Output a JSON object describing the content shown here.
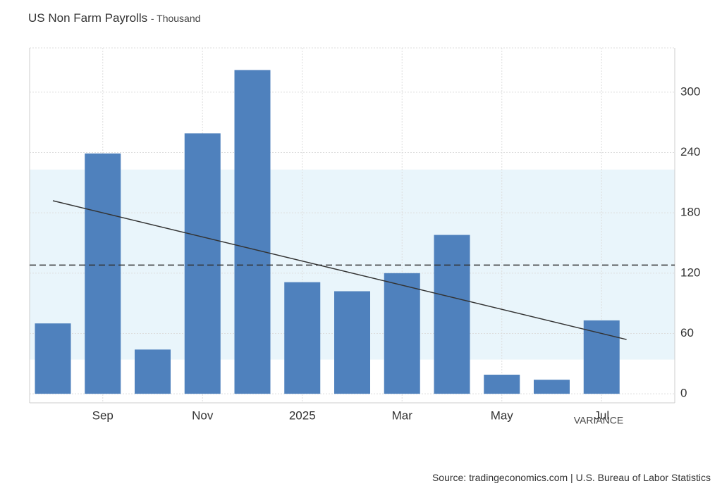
{
  "chart_data": {
    "type": "bar",
    "title": "US Non Farm Payrolls",
    "subtitle": "- Thousand",
    "categories": [
      null,
      "Sep",
      null,
      "Nov",
      null,
      "2025",
      null,
      "Mar",
      null,
      "May",
      null,
      "Jul"
    ],
    "values": [
      70,
      239,
      44,
      259,
      322,
      111,
      102,
      120,
      158,
      19,
      14,
      73
    ],
    "color": "#4f81bd",
    "ylim": [
      -9,
      344
    ],
    "yticks": [
      0,
      60,
      120,
      180,
      240,
      300
    ],
    "grid": true,
    "y_axis_side": "right",
    "mean": 128,
    "band": [
      34,
      223
    ],
    "trend": [
      192,
      54
    ],
    "annotation": "VARIANCE",
    "source": "Source: tradingeconomics.com | U.S. Bureau of Labor Statistics"
  }
}
